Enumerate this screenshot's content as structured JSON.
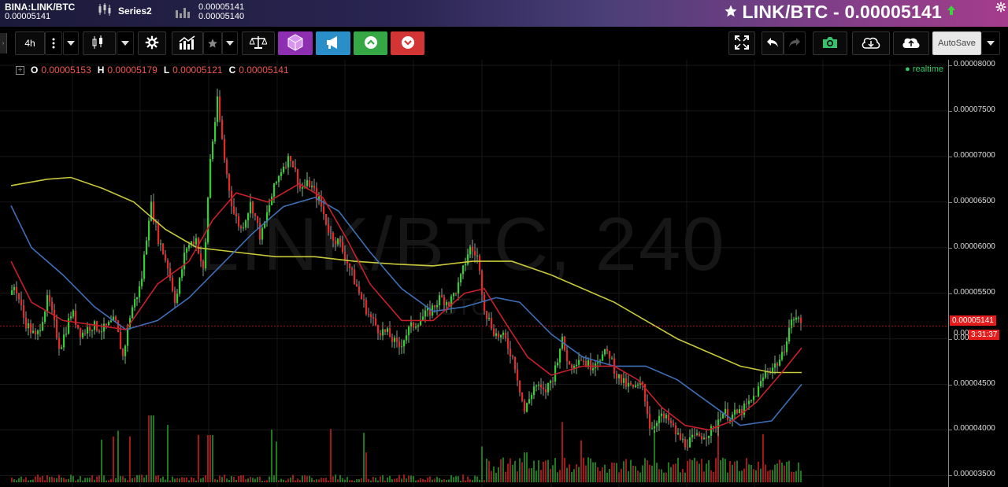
{
  "header": {
    "symbol": "BINA:LINK/BTC",
    "symbol_price": "0.00005141",
    "series_label": "Series2",
    "vol_line1": "0.00005141",
    "vol_line2": "0.00005140",
    "title": "LINK/BTC - 0.00005141",
    "title_icon": "star-icon",
    "trend_icon": "arrow-up-icon"
  },
  "toolbar": {
    "interval": "4h",
    "autosave_label": "AutoSave",
    "colors": {
      "purple": "#8d2fb0",
      "blue": "#2a8fc9",
      "green": "#35a845",
      "red": "#d33535"
    }
  },
  "legend": {
    "o_label": "O",
    "o_value": "0.00005153",
    "h_label": "H",
    "h_value": "0.00005179",
    "l_label": "L",
    "l_value": "0.00005121",
    "c_label": "C",
    "c_value": "0.00005141",
    "realtime": "realtime"
  },
  "watermark": {
    "main": "LINK/BTC, 240",
    "sub": "BTC"
  },
  "price_axis": {
    "ticks": [
      "0.00008000",
      "0.00007500",
      "0.00007000",
      "0.00006500",
      "0.00006000",
      "0.00005500",
      "0.00005000",
      "0.00004500",
      "0.00004000",
      "0.00003500"
    ],
    "last_price": "0.00005141",
    "countdown": "3:31:37",
    "partial_tick": "0.00"
  },
  "chart_data": {
    "type": "candlestick",
    "ylim": [
      3.4e-05,
      8.06e-05
    ],
    "last": 5.141e-05,
    "colors": {
      "up": "#2fd02f",
      "down": "#e82828",
      "ma_fast": "#c8202a",
      "ma_mid": "#3d6fb8",
      "ma_slow": "#c8c83a"
    },
    "close_path": [
      [
        0,
        6e-05
      ],
      [
        8,
        5.3e-05
      ],
      [
        18,
        5.6e-05
      ],
      [
        30,
        5.2e-05
      ],
      [
        45,
        5e-05
      ],
      [
        60,
        5.45e-05
      ],
      [
        75,
        4.9e-05
      ],
      [
        90,
        5.3e-05
      ],
      [
        102,
        5.05e-05
      ],
      [
        115,
        5.15e-05
      ],
      [
        130,
        5.1e-05
      ],
      [
        145,
        5.2e-05
      ],
      [
        155,
        4.8e-05
      ],
      [
        165,
        5.3e-05
      ],
      [
        178,
        5.6e-05
      ],
      [
        190,
        6.5e-05
      ],
      [
        200,
        6.1e-05
      ],
      [
        212,
        5.8e-05
      ],
      [
        222,
        5.4e-05
      ],
      [
        235,
        6e-05
      ],
      [
        248,
        6.1e-05
      ],
      [
        258,
        5.7e-05
      ],
      [
        265,
        6.9e-05
      ],
      [
        275,
        7.6e-05
      ],
      [
        285,
        6.9e-05
      ],
      [
        295,
        6.4e-05
      ],
      [
        305,
        6.2e-05
      ],
      [
        318,
        6.5e-05
      ],
      [
        330,
        6.1e-05
      ],
      [
        345,
        6.6e-05
      ],
      [
        358,
        6.9e-05
      ],
      [
        368,
        7e-05
      ],
      [
        380,
        6.65e-05
      ],
      [
        392,
        6.7e-05
      ],
      [
        405,
        6.5e-05
      ],
      [
        418,
        6.15e-05
      ],
      [
        430,
        6.05e-05
      ],
      [
        442,
        5.8e-05
      ],
      [
        455,
        5.5e-05
      ],
      [
        468,
        5.25e-05
      ],
      [
        480,
        5.1e-05
      ],
      [
        492,
        5.05e-05
      ],
      [
        505,
        4.9e-05
      ],
      [
        518,
        5.1e-05
      ],
      [
        530,
        5.2e-05
      ],
      [
        545,
        5.3e-05
      ],
      [
        558,
        5.45e-05
      ],
      [
        570,
        5.4e-05
      ],
      [
        582,
        5.6e-05
      ],
      [
        595,
        6e-05
      ],
      [
        605,
        5.9e-05
      ],
      [
        615,
        5.3e-05
      ],
      [
        628,
        5.05e-05
      ],
      [
        640,
        5e-05
      ],
      [
        652,
        4.75e-05
      ],
      [
        665,
        4.2e-05
      ],
      [
        678,
        4.5e-05
      ],
      [
        690,
        4.4e-05
      ],
      [
        702,
        4.6e-05
      ],
      [
        712,
        5e-05
      ],
      [
        722,
        4.7e-05
      ],
      [
        735,
        4.8e-05
      ],
      [
        748,
        4.7e-05
      ],
      [
        760,
        4.8e-05
      ],
      [
        772,
        4.85e-05
      ],
      [
        782,
        4.6e-05
      ],
      [
        792,
        4.5e-05
      ],
      [
        805,
        4.45e-05
      ],
      [
        815,
        4.5e-05
      ],
      [
        825,
        4e-05
      ],
      [
        835,
        4.15e-05
      ],
      [
        848,
        4.1e-05
      ],
      [
        858,
        3.95e-05
      ],
      [
        868,
        3.85e-05
      ],
      [
        880,
        3.9e-05
      ],
      [
        892,
        3.95e-05
      ],
      [
        905,
        4e-05
      ],
      [
        915,
        4.2e-05
      ],
      [
        928,
        4.15e-05
      ],
      [
        940,
        4.2e-05
      ],
      [
        952,
        4.3e-05
      ],
      [
        962,
        4.45e-05
      ],
      [
        972,
        4.65e-05
      ],
      [
        982,
        4.7e-05
      ],
      [
        992,
        4.8e-05
      ],
      [
        1000,
        5.1e-05
      ],
      [
        1008,
        5.25e-05
      ],
      [
        1018,
        5.14e-05
      ]
    ],
    "ma_fast": [
      [
        14,
        5.85e-05
      ],
      [
        40,
        5.4e-05
      ],
      [
        80,
        5.2e-05
      ],
      [
        120,
        5.15e-05
      ],
      [
        160,
        5.1e-05
      ],
      [
        200,
        5.6e-05
      ],
      [
        240,
        5.85e-05
      ],
      [
        270,
        6.3e-05
      ],
      [
        300,
        6.6e-05
      ],
      [
        340,
        6.5e-05
      ],
      [
        380,
        6.7e-05
      ],
      [
        410,
        6.55e-05
      ],
      [
        440,
        6.1e-05
      ],
      [
        470,
        5.6e-05
      ],
      [
        510,
        5.2e-05
      ],
      [
        550,
        5.2e-05
      ],
      [
        590,
        5.5e-05
      ],
      [
        615,
        5.55e-05
      ],
      [
        640,
        5.2e-05
      ],
      [
        670,
        4.8e-05
      ],
      [
        700,
        4.6e-05
      ],
      [
        740,
        4.7e-05
      ],
      [
        780,
        4.7e-05
      ],
      [
        810,
        4.55e-05
      ],
      [
        840,
        4.25e-05
      ],
      [
        870,
        4.05e-05
      ],
      [
        900,
        4e-05
      ],
      [
        930,
        4.1e-05
      ],
      [
        960,
        4.3e-05
      ],
      [
        990,
        4.6e-05
      ],
      [
        1018,
        4.9e-05
      ]
    ],
    "ma_mid": [
      [
        14,
        6.46e-05
      ],
      [
        40,
        6e-05
      ],
      [
        80,
        5.7e-05
      ],
      [
        120,
        5.35e-05
      ],
      [
        160,
        5.1e-05
      ],
      [
        200,
        5.2e-05
      ],
      [
        240,
        5.45e-05
      ],
      [
        280,
        5.8e-05
      ],
      [
        320,
        6.15e-05
      ],
      [
        360,
        6.45e-05
      ],
      [
        400,
        6.55e-05
      ],
      [
        430,
        6.4e-05
      ],
      [
        470,
        5.95e-05
      ],
      [
        510,
        5.55e-05
      ],
      [
        550,
        5.3e-05
      ],
      [
        590,
        5.35e-05
      ],
      [
        630,
        5.45e-05
      ],
      [
        660,
        5.4e-05
      ],
      [
        700,
        5.05e-05
      ],
      [
        740,
        4.8e-05
      ],
      [
        780,
        4.7e-05
      ],
      [
        820,
        4.7e-05
      ],
      [
        860,
        4.55e-05
      ],
      [
        900,
        4.3e-05
      ],
      [
        940,
        4.05e-05
      ],
      [
        980,
        4.1e-05
      ],
      [
        1018,
        4.5e-05
      ]
    ],
    "ma_slow": [
      [
        14,
        6.68e-05
      ],
      [
        60,
        6.75e-05
      ],
      [
        90,
        6.77e-05
      ],
      [
        130,
        6.65e-05
      ],
      [
        170,
        6.5e-05
      ],
      [
        210,
        6.2e-05
      ],
      [
        250,
        6e-05
      ],
      [
        300,
        5.95e-05
      ],
      [
        350,
        5.9e-05
      ],
      [
        400,
        5.9e-05
      ],
      [
        450,
        5.85e-05
      ],
      [
        500,
        5.82e-05
      ],
      [
        550,
        5.8e-05
      ],
      [
        600,
        5.85e-05
      ],
      [
        650,
        5.85e-05
      ],
      [
        700,
        5.7e-05
      ],
      [
        740,
        5.55e-05
      ],
      [
        780,
        5.4e-05
      ],
      [
        820,
        5.2e-05
      ],
      [
        860,
        5e-05
      ],
      [
        900,
        4.85e-05
      ],
      [
        940,
        4.7e-05
      ],
      [
        980,
        4.63e-05
      ],
      [
        1018,
        4.63e-05
      ]
    ]
  }
}
